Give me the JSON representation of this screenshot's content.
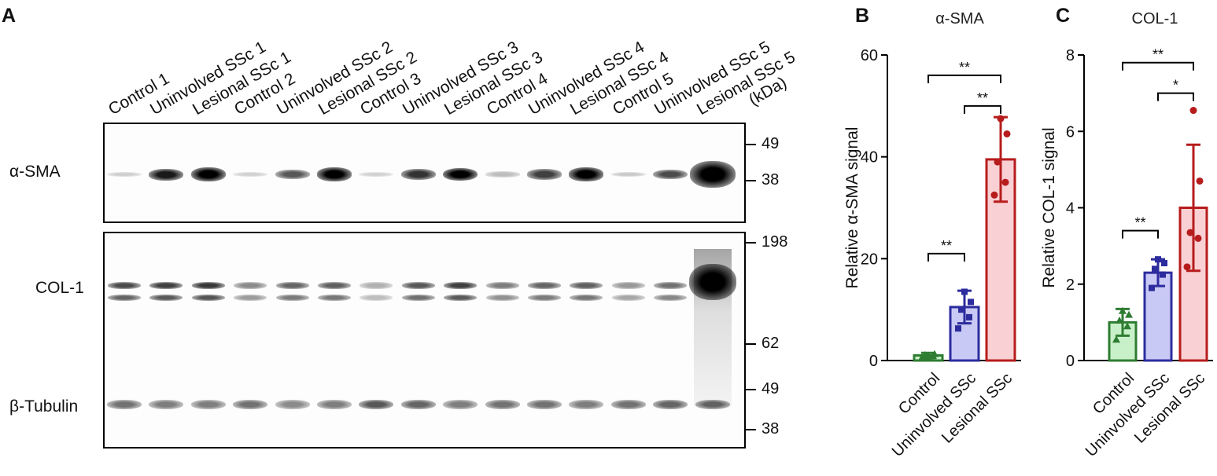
{
  "panels": {
    "a": "A",
    "b": "B",
    "c": "C"
  },
  "blot": {
    "lanes": [
      "Control 1",
      "Uninvolved SSc 1",
      "Lesional SSc 1",
      "Control 2",
      "Uninvolved SSc 2",
      "Lesional SSc 2",
      "Control 3",
      "Uninvolved SSc 3",
      "Lesional SSc 3",
      "Control 4",
      "Uninvolved SSc 4",
      "Lesional SSc 4",
      "Control 5",
      "Uninvolved SSc 5",
      "Lesional SSc 5"
    ],
    "kda_label": "(kDa)",
    "proteins": {
      "sma": "α-SMA",
      "col": "COL-1",
      "tub": "β-Tubulin"
    },
    "markers_top": [
      "49",
      "38"
    ],
    "markers_bottom": [
      "198",
      "62",
      "49",
      "38"
    ],
    "sma_intensity": [
      0.03,
      0.75,
      1.0,
      0.02,
      0.5,
      0.95,
      0.02,
      0.65,
      0.9,
      0.1,
      0.6,
      0.92,
      0.05,
      0.55,
      1.0
    ],
    "col_intensity": [
      0.7,
      0.75,
      0.78,
      0.45,
      0.6,
      0.62,
      0.3,
      0.65,
      0.75,
      0.5,
      0.6,
      0.62,
      0.4,
      0.55,
      1.0
    ],
    "tub_intensity": [
      0.55,
      0.5,
      0.5,
      0.55,
      0.45,
      0.5,
      0.65,
      0.6,
      0.5,
      0.55,
      0.55,
      0.5,
      0.55,
      0.6,
      0.6
    ]
  },
  "chart_data": [
    {
      "type": "bar",
      "title": "α-SMA",
      "ylabel": "Relative α-SMA signal",
      "categories": [
        "Control",
        "Uninvolved SSc",
        "Lesional SSc"
      ],
      "values": [
        1,
        10.5,
        39.5
      ],
      "error": [
        0.5,
        3.2,
        8.3
      ],
      "points": [
        [
          0.6,
          0.9,
          1.1,
          1.3,
          0.8
        ],
        [
          6.3,
          8.5,
          10,
          11.5,
          13.5
        ],
        [
          32.5,
          35,
          39,
          44.5,
          47.5
        ]
      ],
      "colors": [
        "#2e7d32",
        "#2c2c9e",
        "#b71c1c"
      ],
      "fills": [
        "#c9f1c9",
        "#c9c9f5",
        "#f9d0d3"
      ],
      "ylim": [
        0,
        60
      ],
      "yticks": [
        0,
        20,
        40,
        60
      ],
      "significance": [
        {
          "from": 0,
          "to": 1,
          "label": "**",
          "level": 21
        },
        {
          "from": 1,
          "to": 2,
          "label": "**",
          "level": 50
        },
        {
          "from": 0,
          "to": 2,
          "label": "**",
          "level": 56
        }
      ]
    },
    {
      "type": "bar",
      "title": "COL-1",
      "ylabel": "Relative COL-1 signal",
      "categories": [
        "Control",
        "Uninvolved SSc",
        "Lesional SSc"
      ],
      "values": [
        1.0,
        2.3,
        4.0
      ],
      "error": [
        0.35,
        0.35,
        1.65
      ],
      "points": [
        [
          0.55,
          0.9,
          1.05,
          1.2,
          1.3
        ],
        [
          1.9,
          2.25,
          2.4,
          2.55,
          2.65
        ],
        [
          2.45,
          3.2,
          3.35,
          4.7,
          6.55
        ]
      ],
      "colors": [
        "#2e7d32",
        "#2c2c9e",
        "#b71c1c"
      ],
      "fills": [
        "#c9f1c9",
        "#c9c9f5",
        "#f9d0d3"
      ],
      "ylim": [
        0,
        8
      ],
      "yticks": [
        0,
        2,
        4,
        6,
        8
      ],
      "significance": [
        {
          "from": 0,
          "to": 1,
          "label": "**",
          "level": 3.4
        },
        {
          "from": 1,
          "to": 2,
          "label": "*",
          "level": 7.0
        },
        {
          "from": 0,
          "to": 2,
          "label": "**",
          "level": 7.8
        }
      ]
    }
  ]
}
